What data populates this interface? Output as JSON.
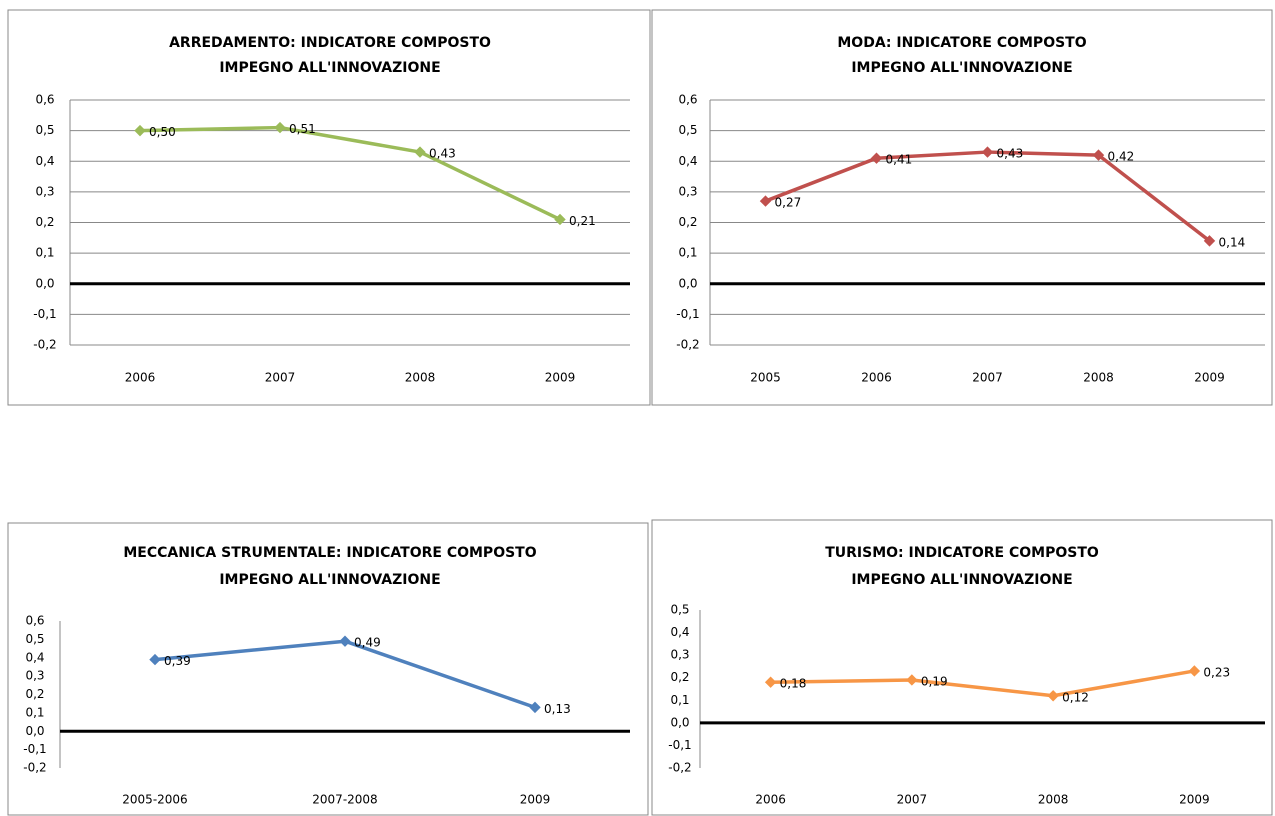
{
  "chart_data": [
    {
      "type": "line",
      "title": [
        "ARREDAMENTO: INDICATORE COMPOSTO",
        "IMPEGNO ALL'INNOVAZIONE"
      ],
      "categories": [
        "2006",
        "2007",
        "2008",
        "2009"
      ],
      "series": [
        {
          "color": "#9bbb59",
          "values": [
            0.5,
            0.51,
            0.43,
            0.21
          ],
          "value_labels": [
            "0,50",
            "0,51",
            "0,43",
            "0,21"
          ]
        }
      ],
      "ylim": [
        -0.2,
        0.6
      ],
      "yticks": [
        {
          "value": -0.2,
          "label": "-0,2"
        },
        {
          "value": -0.1,
          "label": "-0,1"
        },
        {
          "value": 0,
          "label": "0,0"
        },
        {
          "value": 0.1,
          "label": "0,1"
        },
        {
          "value": 0.2,
          "label": "0,2"
        },
        {
          "value": 0.3,
          "label": "0,3"
        },
        {
          "value": 0.4,
          "label": "0,4"
        },
        {
          "value": 0.5,
          "label": "0,5"
        },
        {
          "value": 0.6,
          "label": "0,6"
        }
      ],
      "grid": true
    },
    {
      "type": "line",
      "title": [
        "MODA: INDICATORE COMPOSTO",
        "IMPEGNO ALL'INNOVAZIONE"
      ],
      "categories": [
        "2005",
        "2006",
        "2007",
        "2008",
        "2009"
      ],
      "series": [
        {
          "color": "#c0504d",
          "values": [
            0.27,
            0.41,
            0.43,
            0.42,
            0.14
          ],
          "value_labels": [
            "0,27",
            "0,41",
            "0,43",
            "0,42",
            "0,14"
          ]
        }
      ],
      "ylim": [
        -0.2,
        0.6
      ],
      "yticks": [
        {
          "value": -0.2,
          "label": "-0,2"
        },
        {
          "value": -0.1,
          "label": "-0,1"
        },
        {
          "value": 0,
          "label": "0,0"
        },
        {
          "value": 0.1,
          "label": "0,1"
        },
        {
          "value": 0.2,
          "label": "0,2"
        },
        {
          "value": 0.3,
          "label": "0,3"
        },
        {
          "value": 0.4,
          "label": "0,4"
        },
        {
          "value": 0.5,
          "label": "0,5"
        },
        {
          "value": 0.6,
          "label": "0,6"
        }
      ],
      "grid": true
    },
    {
      "type": "line",
      "title": [
        "MECCANICA STRUMENTALE: INDICATORE COMPOSTO",
        "IMPEGNO ALL'INNOVAZIONE"
      ],
      "categories": [
        "2005-2006",
        "2007-2008",
        "2009"
      ],
      "series": [
        {
          "color": "#4f81bd",
          "values": [
            0.39,
            0.49,
            0.13
          ],
          "value_labels": [
            "0,39",
            "0,49",
            "0,13"
          ]
        }
      ],
      "ylim": [
        -0.2,
        0.6
      ],
      "yticks": [
        {
          "value": -0.2,
          "label": "-0,2"
        },
        {
          "value": -0.1,
          "label": "-0,1"
        },
        {
          "value": 0,
          "label": "0,0"
        },
        {
          "value": 0.1,
          "label": "0,1"
        },
        {
          "value": 0.2,
          "label": "0,2"
        },
        {
          "value": 0.3,
          "label": "0,3"
        },
        {
          "value": 0.4,
          "label": "0,4"
        },
        {
          "value": 0.5,
          "label": "0,5"
        },
        {
          "value": 0.6,
          "label": "0,6"
        }
      ],
      "grid": false
    },
    {
      "type": "line",
      "title": [
        "TURISMO: INDICATORE COMPOSTO",
        "IMPEGNO ALL'INNOVAZIONE"
      ],
      "categories": [
        "2006",
        "2007",
        "2008",
        "2009"
      ],
      "series": [
        {
          "color": "#f79646",
          "values": [
            0.18,
            0.19,
            0.12,
            0.23
          ],
          "value_labels": [
            "0,18",
            "0,19",
            "0,12",
            "0,23"
          ]
        }
      ],
      "ylim": [
        -0.2,
        0.5
      ],
      "yticks": [
        {
          "value": -0.2,
          "label": "-0,2"
        },
        {
          "value": -0.1,
          "label": "-0,1"
        },
        {
          "value": 0,
          "label": "0,0"
        },
        {
          "value": 0.1,
          "label": "0,1"
        },
        {
          "value": 0.2,
          "label": "0,2"
        },
        {
          "value": 0.3,
          "label": "0,3"
        },
        {
          "value": 0.4,
          "label": "0,4"
        },
        {
          "value": 0.5,
          "label": "0,5"
        }
      ],
      "grid": false
    }
  ]
}
